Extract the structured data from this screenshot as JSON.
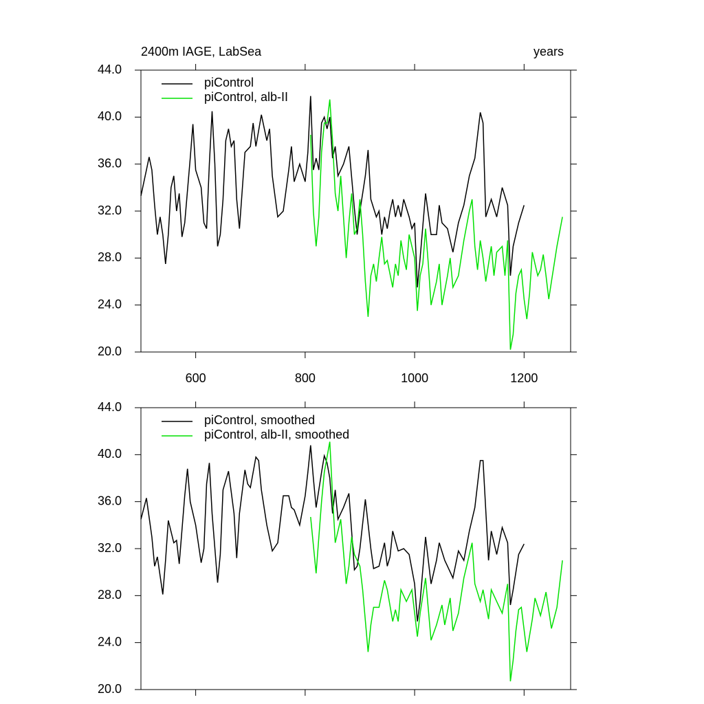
{
  "chart_data": [
    {
      "type": "line",
      "title": "2400m IAGE, LabSea",
      "right_title": "years",
      "xlim": [
        500,
        1285
      ],
      "ylim": [
        20,
        44
      ],
      "xticks": [
        600,
        800,
        1000,
        1200
      ],
      "xtick_labels": true,
      "yticks": [
        {
          "value": 20,
          "label": "20.0"
        },
        {
          "value": 24,
          "label": "24.0"
        },
        {
          "value": 28,
          "label": "28.0"
        },
        {
          "value": 32,
          "label": "32.0"
        },
        {
          "value": 36,
          "label": "36.0"
        },
        {
          "value": 40,
          "label": "40.0"
        },
        {
          "value": 44,
          "label": "44.0"
        }
      ],
      "legend": "upper left",
      "series": [
        {
          "name": "piControl",
          "color": "#000000",
          "x": [
            500,
            510,
            515,
            520,
            525,
            530,
            535,
            540,
            545,
            550,
            555,
            560,
            565,
            570,
            575,
            580,
            590,
            595,
            600,
            610,
            615,
            620,
            625,
            630,
            635,
            640,
            645,
            650,
            655,
            660,
            665,
            670,
            675,
            680,
            690,
            700,
            705,
            710,
            720,
            730,
            735,
            740,
            750,
            760,
            770,
            775,
            780,
            790,
            800,
            805,
            810,
            815,
            820,
            825,
            830,
            835,
            840,
            845,
            850,
            855,
            860,
            870,
            880,
            890,
            895,
            900,
            905,
            910,
            915,
            920,
            930,
            935,
            940,
            945,
            950,
            955,
            960,
            965,
            970,
            975,
            980,
            990,
            995,
            1000,
            1005,
            1010,
            1020,
            1030,
            1040,
            1045,
            1050,
            1060,
            1070,
            1080,
            1090,
            1100,
            1110,
            1120,
            1125,
            1130,
            1140,
            1150,
            1160,
            1170,
            1175,
            1180,
            1190,
            1200
          ],
          "values": [
            33.3,
            35.5,
            36.6,
            35.5,
            32.5,
            30,
            31.5,
            30,
            27.5,
            30,
            34,
            35,
            32,
            33.5,
            29.8,
            31,
            36.5,
            39.4,
            35.5,
            34,
            31,
            30.5,
            36,
            40.5,
            36,
            29,
            30,
            33,
            38,
            39,
            37.5,
            38,
            33,
            30.5,
            37,
            37.5,
            39.5,
            37.5,
            40.2,
            38,
            39,
            35,
            31.5,
            32,
            35.5,
            37.5,
            34.5,
            36,
            34.5,
            37,
            41.8,
            35.5,
            36.5,
            35.5,
            39.5,
            40,
            39,
            40,
            36.5,
            37.5,
            35,
            36,
            37.5,
            32.2,
            30,
            32,
            33.5,
            35,
            37.2,
            33,
            31.5,
            32,
            30,
            31.5,
            30.5,
            32,
            33,
            31.5,
            32.5,
            31.5,
            33,
            31.5,
            30.5,
            31,
            25.5,
            28,
            33.5,
            30,
            30,
            32.5,
            31,
            30.5,
            28.5,
            31,
            32.5,
            35,
            36.5,
            40.4,
            39.5,
            31.5,
            33,
            31.5,
            34,
            32.5,
            26.5,
            29,
            31,
            32.5
          ]
        },
        {
          "name": "piControl, alb-II",
          "color": "#00e000",
          "x": [
            810,
            815,
            820,
            825,
            830,
            835,
            840,
            845,
            850,
            855,
            860,
            865,
            870,
            875,
            880,
            885,
            890,
            895,
            900,
            905,
            910,
            915,
            920,
            925,
            930,
            935,
            940,
            945,
            950,
            960,
            965,
            970,
            975,
            980,
            985,
            990,
            1000,
            1005,
            1010,
            1015,
            1020,
            1025,
            1030,
            1040,
            1045,
            1050,
            1060,
            1065,
            1070,
            1080,
            1090,
            1100,
            1105,
            1110,
            1115,
            1120,
            1125,
            1130,
            1140,
            1145,
            1150,
            1160,
            1165,
            1170,
            1175,
            1180,
            1185,
            1190,
            1195,
            1200,
            1205,
            1210,
            1215,
            1220,
            1225,
            1230,
            1235,
            1240,
            1245,
            1250,
            1260,
            1270
          ],
          "values": [
            38.5,
            32,
            29,
            31.5,
            37,
            39.5,
            39.5,
            41.5,
            38,
            33.5,
            32,
            35,
            31.5,
            28,
            31,
            33.5,
            30,
            30.5,
            33,
            30,
            26,
            23,
            26.5,
            27.5,
            26,
            28,
            29.8,
            27.5,
            27.8,
            25.5,
            27.5,
            26.5,
            29.5,
            28,
            27,
            30,
            28,
            23.5,
            26.5,
            27.5,
            30.5,
            27.5,
            24,
            26,
            27.5,
            24,
            26.5,
            28,
            25.5,
            26.5,
            29.5,
            32,
            33,
            29,
            27,
            29.5,
            28,
            26,
            29,
            26.5,
            28.5,
            29,
            26.5,
            29.5,
            20.2,
            21.5,
            25,
            26.5,
            27,
            24.5,
            22.8,
            25,
            28.5,
            27.5,
            26.5,
            27,
            28.3,
            26.5,
            24.5,
            26,
            29,
            31.5
          ]
        }
      ]
    },
    {
      "type": "line",
      "xlim": [
        500,
        1285
      ],
      "ylim": [
        20,
        44
      ],
      "xticks": [
        600,
        800,
        1000,
        1200
      ],
      "xtick_labels": false,
      "yticks": [
        {
          "value": 20,
          "label": "20.0"
        },
        {
          "value": 24,
          "label": "24.0"
        },
        {
          "value": 28,
          "label": "28.0"
        },
        {
          "value": 32,
          "label": "32.0"
        },
        {
          "value": 36,
          "label": "36.0"
        },
        {
          "value": 40,
          "label": "40.0"
        },
        {
          "value": 44,
          "label": "44.0"
        }
      ],
      "legend": "upper left",
      "series": [
        {
          "name": "piControl, smoothed",
          "color": "#000000",
          "x": [
            500,
            510,
            520,
            525,
            530,
            540,
            545,
            550,
            560,
            565,
            570,
            580,
            585,
            590,
            600,
            610,
            615,
            620,
            625,
            630,
            640,
            645,
            650,
            660,
            670,
            675,
            680,
            690,
            695,
            700,
            710,
            715,
            720,
            730,
            740,
            750,
            760,
            770,
            775,
            780,
            790,
            800,
            805,
            810,
            815,
            820,
            830,
            835,
            840,
            845,
            850,
            855,
            860,
            870,
            880,
            890,
            895,
            900,
            910,
            920,
            925,
            935,
            945,
            950,
            955,
            960,
            970,
            980,
            990,
            1000,
            1005,
            1010,
            1020,
            1030,
            1040,
            1045,
            1055,
            1060,
            1070,
            1080,
            1090,
            1100,
            1110,
            1120,
            1125,
            1135,
            1140,
            1150,
            1160,
            1170,
            1175,
            1180,
            1190,
            1200
          ],
          "values": [
            34.5,
            36.3,
            33,
            30.5,
            31.3,
            28.1,
            31,
            34.4,
            32.5,
            32.7,
            30.7,
            36.5,
            38.8,
            36,
            34,
            30.8,
            32,
            37.5,
            39.3,
            35,
            29.1,
            31.5,
            37,
            38.6,
            35,
            31.2,
            35,
            38.7,
            37.5,
            37.2,
            39.8,
            39.5,
            37,
            34,
            31.8,
            32.5,
            36.5,
            36.5,
            35.5,
            35.3,
            34,
            36.5,
            38.5,
            40.8,
            38,
            35.5,
            38.5,
            39.9,
            39.3,
            38,
            35,
            37,
            34.5,
            35.5,
            36.7,
            30.2,
            30.5,
            32,
            36.2,
            32,
            30.3,
            30.5,
            32.5,
            30.5,
            31.3,
            33.5,
            31.8,
            32,
            31.5,
            29,
            25.8,
            27.5,
            33,
            29,
            31,
            32.5,
            31,
            30.5,
            29.5,
            31.8,
            31,
            33.5,
            35.5,
            39.5,
            39.5,
            31,
            33.5,
            31.5,
            33.8,
            32.5,
            27.2,
            28.5,
            31.5,
            32.4
          ]
        },
        {
          "name": "piControl, alb-II, smoothed",
          "color": "#00e000",
          "x": [
            810,
            820,
            830,
            835,
            845,
            850,
            855,
            860,
            865,
            875,
            880,
            885,
            890,
            900,
            905,
            915,
            920,
            925,
            935,
            945,
            950,
            960,
            965,
            970,
            975,
            985,
            995,
            1005,
            1010,
            1020,
            1030,
            1040,
            1050,
            1055,
            1065,
            1070,
            1080,
            1090,
            1105,
            1110,
            1120,
            1125,
            1135,
            1140,
            1150,
            1160,
            1170,
            1175,
            1180,
            1185,
            1190,
            1195,
            1205,
            1215,
            1220,
            1230,
            1240,
            1250,
            1260,
            1270
          ],
          "values": [
            34.7,
            29.9,
            36,
            38.5,
            41.1,
            36.5,
            32.5,
            33.5,
            34.5,
            29,
            30.5,
            33,
            31.5,
            30.5,
            28.5,
            23.2,
            25.5,
            27,
            27,
            29.3,
            28.5,
            25.8,
            26.8,
            25.8,
            28.5,
            27.5,
            28.5,
            24.5,
            26.5,
            29.5,
            24.2,
            25.5,
            27.2,
            25.5,
            27.8,
            25,
            26.5,
            29.5,
            32.5,
            29,
            27.5,
            28.5,
            26,
            28.5,
            27.5,
            26.5,
            29,
            20.7,
            22.5,
            25,
            26.8,
            27,
            23.2,
            26,
            27.8,
            26.3,
            28.3,
            25.2,
            27,
            31
          ]
        }
      ]
    }
  ]
}
